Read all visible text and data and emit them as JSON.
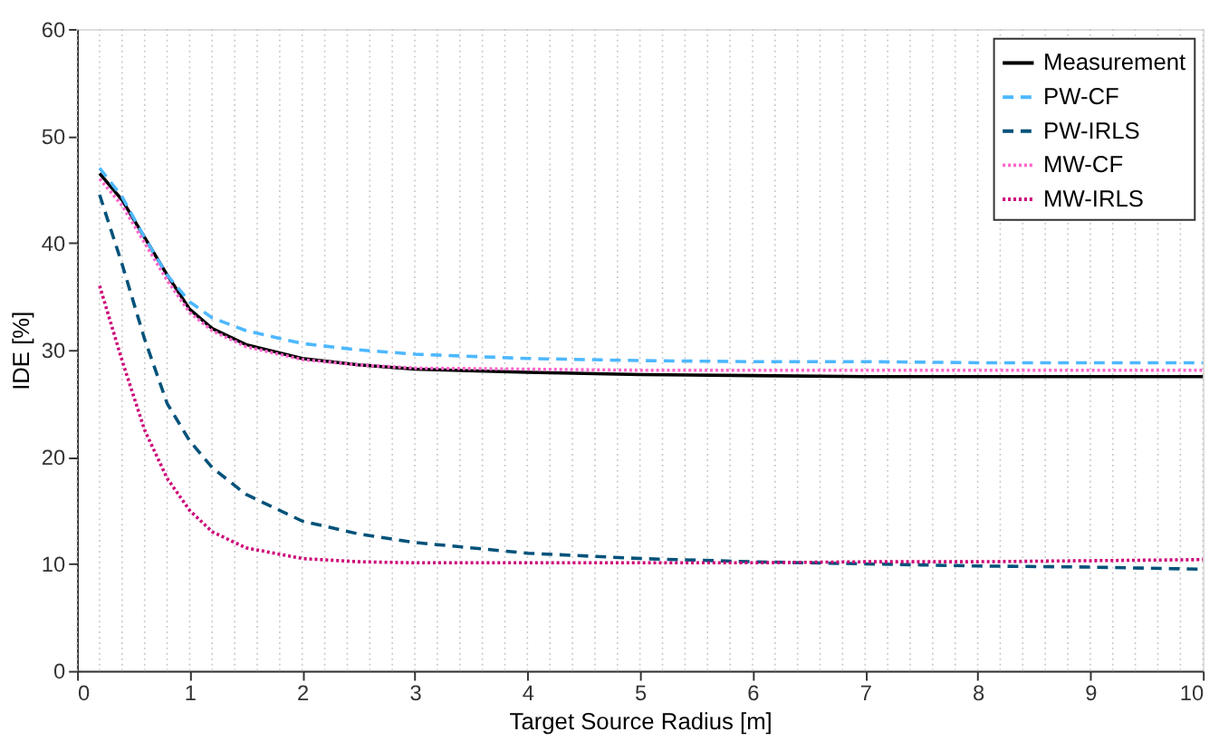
{
  "chart_data": {
    "type": "line",
    "xlabel": "Target Source Radius [m]",
    "ylabel": "IDE [%]",
    "x": [
      0.2,
      0.4,
      0.6,
      0.8,
      1.0,
      1.2,
      1.5,
      2,
      2.5,
      3,
      4,
      5,
      6,
      7,
      8,
      9,
      10
    ],
    "xlim": [
      0,
      10
    ],
    "xticks": [
      0,
      1,
      2,
      3,
      4,
      5,
      6,
      7,
      8,
      9,
      10
    ],
    "ylim": [
      0,
      60
    ],
    "yticks": [
      0,
      10,
      20,
      30,
      40,
      50,
      60
    ],
    "grid": "x",
    "legend": "top right",
    "series": [
      {
        "name": "Measurement",
        "color": "#000000",
        "line_style": "solid",
        "values": [
          46.5,
          44,
          40.5,
          37,
          33.8,
          32,
          30.5,
          29.2,
          28.6,
          28.2,
          27.9,
          27.7,
          27.6,
          27.5,
          27.5,
          27.5,
          27.5
        ]
      },
      {
        "name": "PW-CF",
        "color": "#4db8ff",
        "line_style": "dashed",
        "values": [
          47,
          44.3,
          40.5,
          37,
          34.5,
          33,
          31.8,
          30.6,
          30,
          29.6,
          29.2,
          29,
          28.9,
          28.9,
          28.8,
          28.8,
          28.8
        ]
      },
      {
        "name": "PW-IRLS",
        "color": "#00527a",
        "line_style": "dashed",
        "values": [
          44.5,
          38,
          31,
          25,
          21.5,
          19,
          16.5,
          14,
          12.8,
          12,
          11,
          10.5,
          10.2,
          10,
          9.8,
          9.7,
          9.5
        ]
      },
      {
        "name": "MW-CF",
        "color": "#ff66cc",
        "line_style": "dotted",
        "values": [
          46,
          43.5,
          40,
          36.5,
          33.5,
          31.8,
          30.3,
          29.1,
          28.6,
          28.3,
          28.2,
          28.1,
          28.1,
          28.1,
          28.1,
          28.1,
          28.1
        ]
      },
      {
        "name": "MW-IRLS",
        "color": "#cc0077",
        "line_style": "dotted",
        "values": [
          36,
          29,
          22.5,
          18,
          15,
          13,
          11.5,
          10.5,
          10.2,
          10.1,
          10.1,
          10.1,
          10.1,
          10.2,
          10.2,
          10.3,
          10.4
        ]
      }
    ]
  }
}
